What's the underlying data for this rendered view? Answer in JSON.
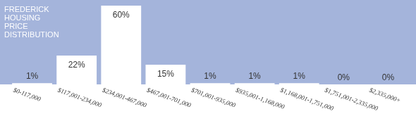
{
  "chart_data": {
    "type": "bar",
    "title": "FREDERICK HOUSING PRICE DISTRIBUTION",
    "categories": [
      "$0-117,000",
      "$117,001-234,000",
      "$234,001-467,000",
      "$467,001-701,000",
      "$701,001-935,000",
      "$935,001-1,168,000",
      "$1,168,001-1,751,000",
      "$1,751,001-2,335,000",
      "$2,335,000+"
    ],
    "values": [
      1,
      22,
      60,
      15,
      1,
      1,
      1,
      0,
      0
    ],
    "value_labels": [
      "1%",
      "22%",
      "60%",
      "15%",
      "1%",
      "1%",
      "1%",
      "0%",
      "0%"
    ],
    "color": "#ffffff",
    "ylim": [
      0,
      60
    ],
    "grid": false,
    "data_labels": true,
    "tick_labels": "x"
  }
}
